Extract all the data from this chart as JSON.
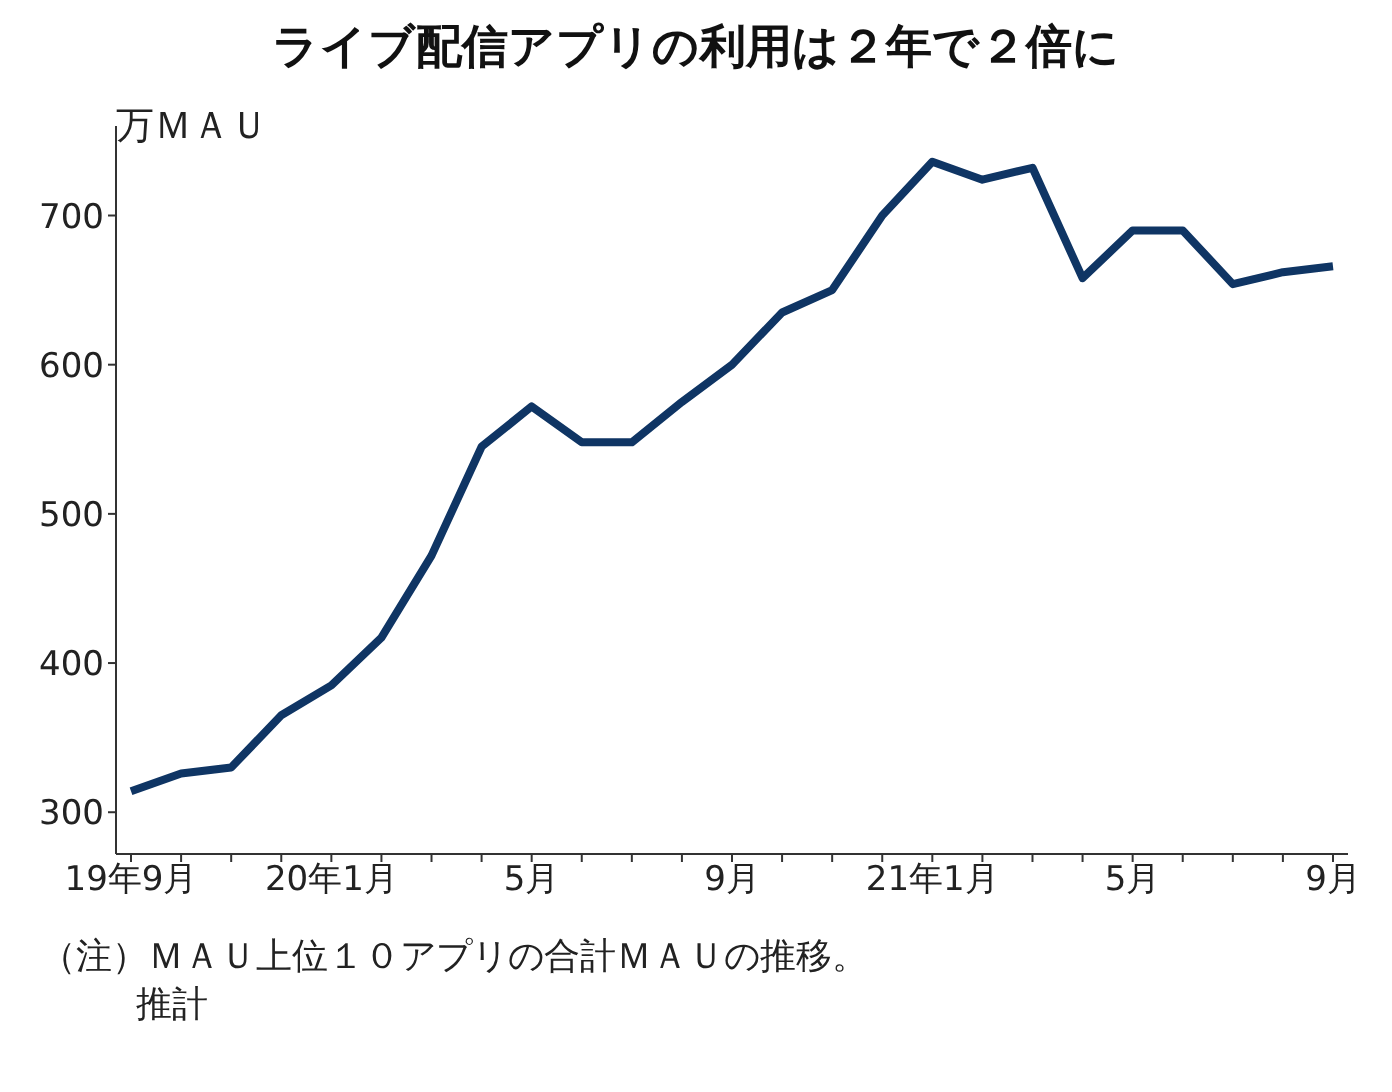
{
  "chart_data": {
    "type": "line",
    "title": "ライブ配信アプリの利用は２年で２倍に",
    "ylabel": "万ＭＡＵ",
    "categories": [
      "19年9月",
      null,
      null,
      null,
      "20年1月",
      null,
      null,
      null,
      "5月",
      null,
      null,
      null,
      "9月",
      null,
      null,
      null,
      "21年1月",
      null,
      null,
      null,
      "5月",
      null,
      null,
      null,
      "9月"
    ],
    "series": [
      {
        "color": "#0f3564",
        "values": [
          314,
          326,
          330,
          365,
          385,
          417,
          472,
          545,
          572,
          548,
          548,
          575,
          600,
          635,
          650,
          700,
          736,
          724,
          732,
          658,
          690,
          690,
          654,
          662,
          666
        ]
      }
    ],
    "ylim": [
      272,
      760
    ],
    "yticks": [
      300,
      400,
      500,
      600,
      700
    ],
    "grid": false,
    "legend": false,
    "marker": "none",
    "line_style": "solid",
    "annotations": [
      "（注）ＭＡＵ上位１０アプリの合計ＭＡＵの推移。",
      "推計"
    ]
  }
}
